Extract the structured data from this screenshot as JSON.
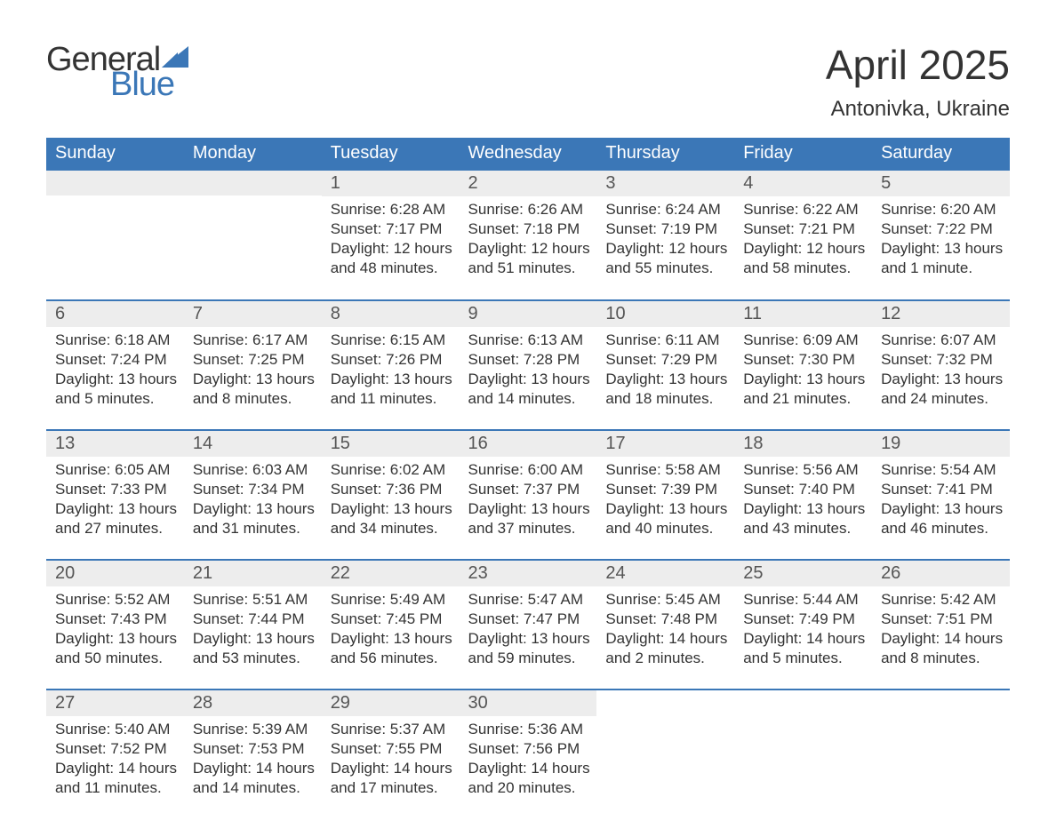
{
  "brand": {
    "part1": "General",
    "part2": "Blue",
    "color_brand": "#3b77b7",
    "color_text": "#333333"
  },
  "title": "April 2025",
  "location": "Antonivka, Ukraine",
  "colors": {
    "header_bg": "#3b77b7",
    "header_fg": "#ffffff",
    "daynum_bg": "#ededed",
    "text": "#333333",
    "row_border": "#3b77b7",
    "background": "#ffffff"
  },
  "fonts": {
    "title_size_pt": 34,
    "location_size_pt": 18,
    "header_size_pt": 15,
    "body_size_pt": 13,
    "daynum_size_pt": 15
  },
  "dayNames": [
    "Sunday",
    "Monday",
    "Tuesday",
    "Wednesday",
    "Thursday",
    "Friday",
    "Saturday"
  ],
  "weeks": [
    [
      null,
      null,
      {
        "day": "1",
        "sunrise": "6:28 AM",
        "sunset": "7:17 PM",
        "daylight1": "12 hours",
        "daylight2": "and 48 minutes."
      },
      {
        "day": "2",
        "sunrise": "6:26 AM",
        "sunset": "7:18 PM",
        "daylight1": "12 hours",
        "daylight2": "and 51 minutes."
      },
      {
        "day": "3",
        "sunrise": "6:24 AM",
        "sunset": "7:19 PM",
        "daylight1": "12 hours",
        "daylight2": "and 55 minutes."
      },
      {
        "day": "4",
        "sunrise": "6:22 AM",
        "sunset": "7:21 PM",
        "daylight1": "12 hours",
        "daylight2": "and 58 minutes."
      },
      {
        "day": "5",
        "sunrise": "6:20 AM",
        "sunset": "7:22 PM",
        "daylight1": "13 hours",
        "daylight2": "and 1 minute."
      }
    ],
    [
      {
        "day": "6",
        "sunrise": "6:18 AM",
        "sunset": "7:24 PM",
        "daylight1": "13 hours",
        "daylight2": "and 5 minutes."
      },
      {
        "day": "7",
        "sunrise": "6:17 AM",
        "sunset": "7:25 PM",
        "daylight1": "13 hours",
        "daylight2": "and 8 minutes."
      },
      {
        "day": "8",
        "sunrise": "6:15 AM",
        "sunset": "7:26 PM",
        "daylight1": "13 hours",
        "daylight2": "and 11 minutes."
      },
      {
        "day": "9",
        "sunrise": "6:13 AM",
        "sunset": "7:28 PM",
        "daylight1": "13 hours",
        "daylight2": "and 14 minutes."
      },
      {
        "day": "10",
        "sunrise": "6:11 AM",
        "sunset": "7:29 PM",
        "daylight1": "13 hours",
        "daylight2": "and 18 minutes."
      },
      {
        "day": "11",
        "sunrise": "6:09 AM",
        "sunset": "7:30 PM",
        "daylight1": "13 hours",
        "daylight2": "and 21 minutes."
      },
      {
        "day": "12",
        "sunrise": "6:07 AM",
        "sunset": "7:32 PM",
        "daylight1": "13 hours",
        "daylight2": "and 24 minutes."
      }
    ],
    [
      {
        "day": "13",
        "sunrise": "6:05 AM",
        "sunset": "7:33 PM",
        "daylight1": "13 hours",
        "daylight2": "and 27 minutes."
      },
      {
        "day": "14",
        "sunrise": "6:03 AM",
        "sunset": "7:34 PM",
        "daylight1": "13 hours",
        "daylight2": "and 31 minutes."
      },
      {
        "day": "15",
        "sunrise": "6:02 AM",
        "sunset": "7:36 PM",
        "daylight1": "13 hours",
        "daylight2": "and 34 minutes."
      },
      {
        "day": "16",
        "sunrise": "6:00 AM",
        "sunset": "7:37 PM",
        "daylight1": "13 hours",
        "daylight2": "and 37 minutes."
      },
      {
        "day": "17",
        "sunrise": "5:58 AM",
        "sunset": "7:39 PM",
        "daylight1": "13 hours",
        "daylight2": "and 40 minutes."
      },
      {
        "day": "18",
        "sunrise": "5:56 AM",
        "sunset": "7:40 PM",
        "daylight1": "13 hours",
        "daylight2": "and 43 minutes."
      },
      {
        "day": "19",
        "sunrise": "5:54 AM",
        "sunset": "7:41 PM",
        "daylight1": "13 hours",
        "daylight2": "and 46 minutes."
      }
    ],
    [
      {
        "day": "20",
        "sunrise": "5:52 AM",
        "sunset": "7:43 PM",
        "daylight1": "13 hours",
        "daylight2": "and 50 minutes."
      },
      {
        "day": "21",
        "sunrise": "5:51 AM",
        "sunset": "7:44 PM",
        "daylight1": "13 hours",
        "daylight2": "and 53 minutes."
      },
      {
        "day": "22",
        "sunrise": "5:49 AM",
        "sunset": "7:45 PM",
        "daylight1": "13 hours",
        "daylight2": "and 56 minutes."
      },
      {
        "day": "23",
        "sunrise": "5:47 AM",
        "sunset": "7:47 PM",
        "daylight1": "13 hours",
        "daylight2": "and 59 minutes."
      },
      {
        "day": "24",
        "sunrise": "5:45 AM",
        "sunset": "7:48 PM",
        "daylight1": "14 hours",
        "daylight2": "and 2 minutes."
      },
      {
        "day": "25",
        "sunrise": "5:44 AM",
        "sunset": "7:49 PM",
        "daylight1": "14 hours",
        "daylight2": "and 5 minutes."
      },
      {
        "day": "26",
        "sunrise": "5:42 AM",
        "sunset": "7:51 PM",
        "daylight1": "14 hours",
        "daylight2": "and 8 minutes."
      }
    ],
    [
      {
        "day": "27",
        "sunrise": "5:40 AM",
        "sunset": "7:52 PM",
        "daylight1": "14 hours",
        "daylight2": "and 11 minutes."
      },
      {
        "day": "28",
        "sunrise": "5:39 AM",
        "sunset": "7:53 PM",
        "daylight1": "14 hours",
        "daylight2": "and 14 minutes."
      },
      {
        "day": "29",
        "sunrise": "5:37 AM",
        "sunset": "7:55 PM",
        "daylight1": "14 hours",
        "daylight2": "and 17 minutes."
      },
      {
        "day": "30",
        "sunrise": "5:36 AM",
        "sunset": "7:56 PM",
        "daylight1": "14 hours",
        "daylight2": "and 20 minutes."
      },
      null,
      null,
      null
    ]
  ]
}
